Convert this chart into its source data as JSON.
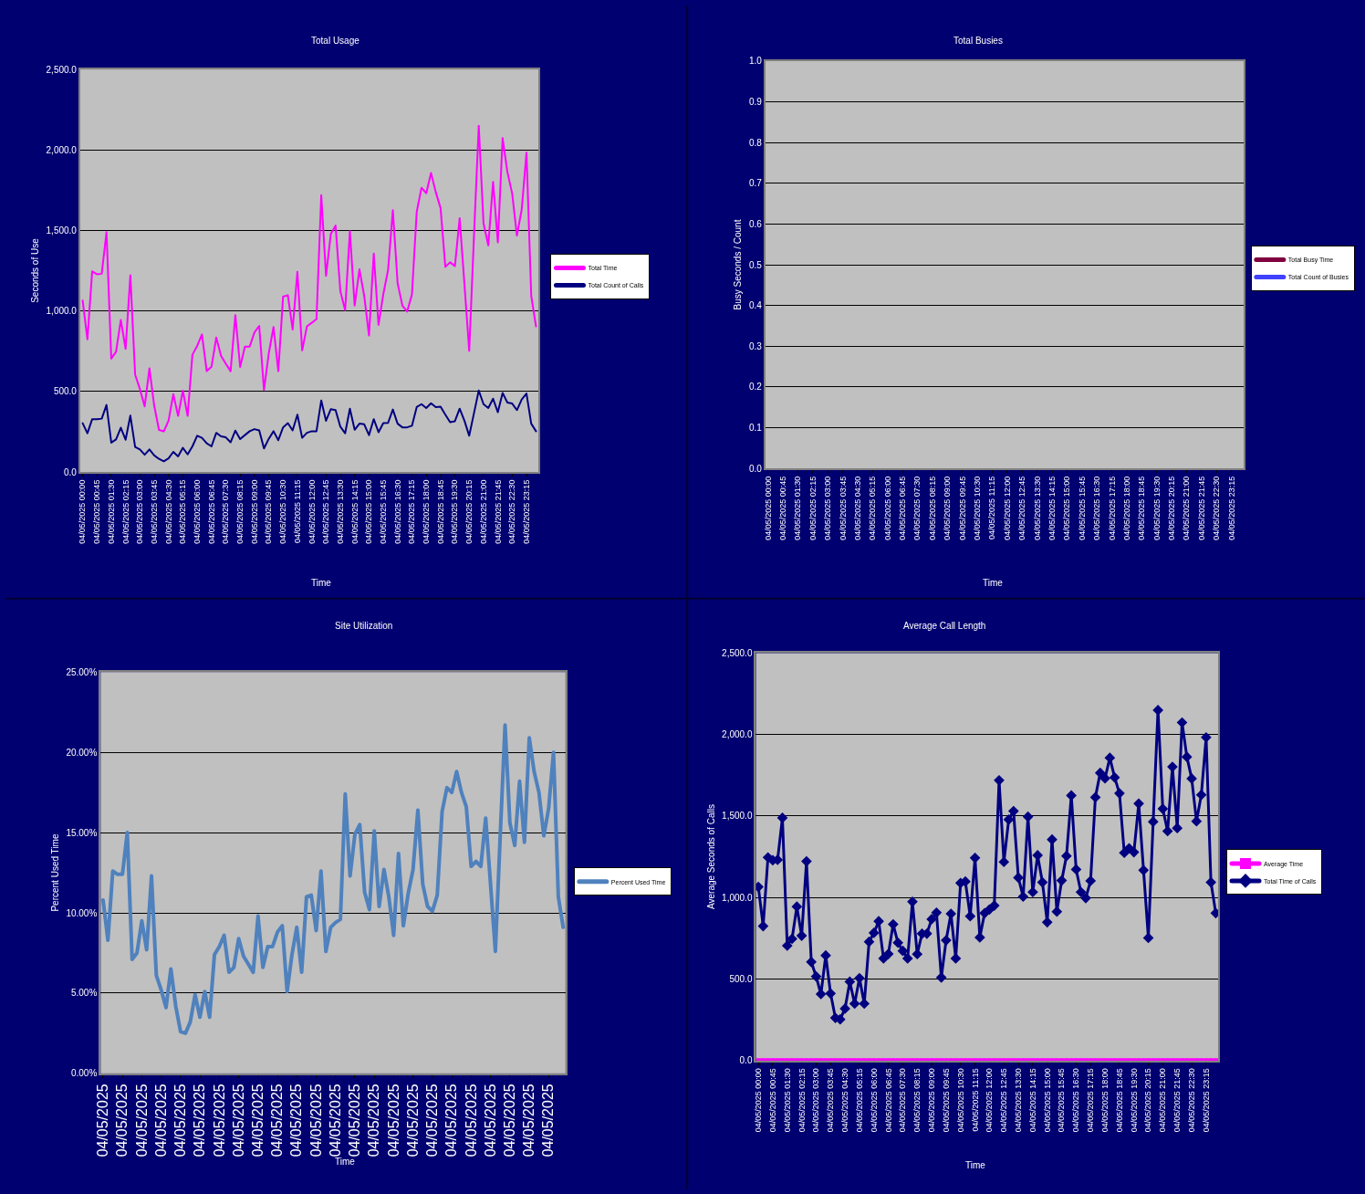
{
  "chart_data": [
    {
      "type": "line",
      "title": "Total Usage",
      "xlabel": "Time",
      "ylabel": "Seconds of Use",
      "grid": "y",
      "legend": "right",
      "categories": [
        "04/05/2025 00:00",
        null,
        null,
        "04/05/2025 00:45",
        null,
        null,
        "04/05/2025 01:30",
        null,
        null,
        "04/05/2025 02:15",
        null,
        null,
        "04/05/2025 03:00",
        null,
        null,
        "04/05/2025 03:45",
        null,
        null,
        "04/05/2025 04:30",
        null,
        null,
        "04/05/2025 05:15",
        null,
        null,
        "04/05/2025 06:00",
        null,
        null,
        "04/05/2025 06:45",
        null,
        null,
        "04/05/2025 07:30",
        null,
        null,
        "04/05/2025 08:15",
        null,
        null,
        "04/05/2025 09:00",
        null,
        null,
        "04/05/2025 09:45",
        null,
        null,
        "04/05/2025 10:30",
        null,
        null,
        "04/05/2025 11:15",
        null,
        null,
        "04/05/2025 12:00",
        null,
        null,
        "04/05/2025 12:45",
        null,
        null,
        "04/05/2025 13:30",
        null,
        null,
        "04/05/2025 14:15",
        null,
        null,
        "04/05/2025 15:00",
        null,
        null,
        "04/05/2025 15:45",
        null,
        null,
        "04/05/2025 16:30",
        null,
        null,
        "04/05/2025 17:15",
        null,
        null,
        "04/05/2025 18:00",
        null,
        null,
        "04/05/2025 18:45",
        null,
        null,
        "04/05/2025 19:30",
        null,
        null,
        "04/05/2025 20:15",
        null,
        null,
        "04/05/2025 21:00",
        null,
        null,
        "04/05/2025 21:45",
        null,
        null,
        "04/05/2025 22:30",
        null,
        null,
        "04/05/2025 23:15",
        null,
        null
      ],
      "ylim": [
        0,
        2500
      ],
      "yticks": [
        {
          "value": 0,
          "label": "0.0"
        },
        {
          "value": 500,
          "label": "500.0"
        },
        {
          "value": 1000,
          "label": "1,000.0"
        },
        {
          "value": 1500,
          "label": "1,500.0"
        },
        {
          "value": 2000,
          "label": "2,000.0"
        },
        {
          "value": 2500,
          "label": "2,500.0"
        }
      ],
      "series": [
        {
          "name": "Total Time",
          "color": "#ff00ff",
          "values": [
            1065,
            824,
            1246,
            1228,
            1231,
            1489,
            704,
            746,
            944,
            765,
            1222,
            604,
            515,
            407,
            644,
            411,
            261,
            252,
            318,
            483,
            348,
            505,
            348,
            728,
            783,
            854,
            626,
            653,
            835,
            722,
            672,
            626,
            974,
            652,
            778,
            778,
            867,
            907,
            509,
            737,
            900,
            626,
            1089,
            1098,
            885,
            1243,
            755,
            904,
            926,
            950,
            1719,
            1218,
            1478,
            1530,
            1122,
            1005,
            1496,
            1033,
            1259,
            1093,
            848,
            1356,
            913,
            1104,
            1255,
            1626,
            1172,
            1033,
            996,
            1102,
            1615,
            1765,
            1731,
            1857,
            1737,
            1639,
            1274,
            1302,
            1278,
            1576,
            1167,
            752,
            1465,
            2150,
            1544,
            1407,
            1802,
            1426,
            2074,
            1863,
            1730,
            1468,
            1630,
            1983,
            1093,
            904
          ]
        },
        {
          "name": "Total Count of Calls",
          "color": "#000080",
          "values": [
            303,
            240,
            328,
            328,
            331,
            416,
            182,
            202,
            275,
            200,
            350,
            155,
            140,
            107,
            140,
            103,
            81,
            66,
            84,
            125,
            97,
            150,
            109,
            159,
            225,
            212,
            178,
            159,
            243,
            221,
            215,
            184,
            257,
            204,
            229,
            253,
            266,
            258,
            146,
            206,
            253,
            197,
            277,
            303,
            258,
            356,
            212,
            243,
            253,
            253,
            444,
            318,
            390,
            384,
            281,
            240,
            393,
            262,
            300,
            296,
            229,
            328,
            247,
            303,
            305,
            388,
            300,
            277,
            277,
            287,
            403,
            421,
            397,
            427,
            403,
            406,
            356,
            309,
            315,
            393,
            318,
            225,
            365,
            506,
            421,
            397,
            455,
            371,
            491,
            431,
            425,
            384,
            450,
            487,
            300,
            253
          ]
        }
      ]
    },
    {
      "type": "line",
      "title": "Total Busies",
      "xlabel": "Time",
      "ylabel": "Busy Seconds / Count",
      "grid": "y",
      "legend": "right",
      "categories": [
        "04/05/2025 00:00",
        null,
        null,
        "04/05/2025 00:45",
        null,
        null,
        "04/05/2025 01:30",
        null,
        null,
        "04/05/2025 02:15",
        null,
        null,
        "04/05/2025 03:00",
        null,
        null,
        "04/05/2025 03:45",
        null,
        null,
        "04/05/2025 04:30",
        null,
        null,
        "04/05/2025 05:15",
        null,
        null,
        "04/05/2025 06:00",
        null,
        null,
        "04/05/2025 06:45",
        null,
        null,
        "04/05/2025 07:30",
        null,
        null,
        "04/05/2025 08:15",
        null,
        null,
        "04/05/2025 09:00",
        null,
        null,
        "04/05/2025 09:45",
        null,
        null,
        "04/05/2025 10:30",
        null,
        null,
        "04/05/2025 11:15",
        null,
        null,
        "04/05/2025 12:00",
        null,
        null,
        "04/05/2025 12:45",
        null,
        null,
        "04/05/2025 13:30",
        null,
        null,
        "04/05/2025 14:15",
        null,
        null,
        "04/05/2025 15:00",
        null,
        null,
        "04/05/2025 15:45",
        null,
        null,
        "04/05/2025 16:30",
        null,
        null,
        "04/05/2025 17:15",
        null,
        null,
        "04/05/2025 18:00",
        null,
        null,
        "04/05/2025 18:45",
        null,
        null,
        "04/05/2025 19:30",
        null,
        null,
        "04/05/2025 20:15",
        null,
        null,
        "04/05/2025 21:00",
        null,
        null,
        "04/05/2025 21:45",
        null,
        null,
        "04/05/2025 22:30",
        null,
        null,
        "04/05/2025 23:15",
        null,
        null
      ],
      "ylim": [
        0,
        1
      ],
      "yticks": [
        {
          "value": 0,
          "label": "0.0"
        },
        {
          "value": 0.1,
          "label": "0.1"
        },
        {
          "value": 0.2,
          "label": "0.2"
        },
        {
          "value": 0.3,
          "label": "0.3"
        },
        {
          "value": 0.4,
          "label": "0.4"
        },
        {
          "value": 0.5,
          "label": "0.5"
        },
        {
          "value": 0.6,
          "label": "0.6"
        },
        {
          "value": 0.7,
          "label": "0.7"
        },
        {
          "value": 0.8,
          "label": "0.8"
        },
        {
          "value": 0.9,
          "label": "0.9"
        },
        {
          "value": 1,
          "label": "1.0"
        }
      ],
      "series": [
        {
          "name": "Total Busy Time",
          "color": "#800040",
          "values": [
            null,
            null,
            null,
            null,
            null,
            null,
            null,
            null,
            null,
            null,
            null,
            null,
            null,
            null,
            null,
            null,
            null,
            null,
            null,
            null,
            null,
            null,
            null,
            null,
            null,
            null,
            null,
            null,
            null,
            null,
            null,
            null,
            null,
            null,
            null,
            null,
            null,
            null,
            null,
            null,
            null,
            null,
            null,
            null,
            null,
            null,
            null,
            null,
            null,
            null,
            null,
            null,
            null,
            null,
            null,
            null,
            null,
            null,
            null,
            null,
            null,
            null,
            null,
            null,
            null,
            null,
            null,
            null,
            null,
            null,
            null,
            null,
            null,
            null,
            null,
            null,
            null,
            null,
            null,
            null,
            null,
            null,
            null,
            null,
            null,
            null,
            null,
            null,
            null,
            null,
            null,
            null,
            null,
            null,
            null,
            null
          ]
        },
        {
          "name": "Total Count of Busies",
          "color": "#4040ff",
          "values": [
            null,
            null,
            null,
            null,
            null,
            null,
            null,
            null,
            null,
            null,
            null,
            null,
            null,
            null,
            null,
            null,
            null,
            null,
            null,
            null,
            null,
            null,
            null,
            null,
            null,
            null,
            null,
            null,
            null,
            null,
            null,
            null,
            null,
            null,
            null,
            null,
            null,
            null,
            null,
            null,
            null,
            null,
            null,
            null,
            null,
            null,
            null,
            null,
            null,
            null,
            null,
            null,
            null,
            null,
            null,
            null,
            null,
            null,
            null,
            null,
            null,
            null,
            null,
            null,
            null,
            null,
            null,
            null,
            null,
            null,
            null,
            null,
            null,
            null,
            null,
            null,
            null,
            null,
            null,
            null,
            null,
            null,
            null,
            null,
            null,
            null,
            null,
            null,
            null,
            null,
            null,
            null,
            null,
            null,
            null,
            null
          ]
        }
      ]
    },
    {
      "type": "line",
      "title": "Site Utilization",
      "xlabel": "Time",
      "ylabel": "Percent Used Time",
      "grid": "y",
      "legend": "right",
      "categories": [
        "04/05/2025",
        null,
        null,
        null,
        "04/05/2025",
        null,
        null,
        null,
        "04/05/2025",
        null,
        null,
        null,
        "04/05/2025",
        null,
        null,
        null,
        "04/05/2025",
        null,
        null,
        null,
        "04/05/2025",
        null,
        null,
        null,
        "04/05/2025",
        null,
        null,
        null,
        "04/05/2025",
        null,
        null,
        null,
        "04/05/2025",
        null,
        null,
        null,
        "04/05/2025",
        null,
        null,
        null,
        "04/05/2025",
        null,
        null,
        null,
        "04/05/2025",
        null,
        null,
        null,
        "04/05/2025",
        null,
        null,
        null,
        "04/05/2025",
        null,
        null,
        null,
        "04/05/2025",
        null,
        null,
        null,
        "04/05/2025",
        null,
        null,
        null,
        "04/05/2025",
        null,
        null,
        null,
        "04/05/2025",
        null,
        null,
        null,
        "04/05/2025",
        null,
        null,
        null,
        "04/05/2025",
        null,
        null,
        null,
        "04/05/2025",
        null,
        null,
        null,
        "04/05/2025",
        null,
        null,
        null,
        "04/05/2025",
        null,
        null,
        null,
        "04/05/2025",
        null,
        null,
        null
      ],
      "ylim": [
        0,
        25
      ],
      "yticks": [
        {
          "value": 0,
          "label": "0.00%"
        },
        {
          "value": 5,
          "label": "5.00%"
        },
        {
          "value": 10,
          "label": "10.00%"
        },
        {
          "value": 15,
          "label": "15.00%"
        },
        {
          "value": 20,
          "label": "20.00%"
        },
        {
          "value": 25,
          "label": "25.00%"
        }
      ],
      "series": [
        {
          "name": "Percent Used Time",
          "color": "#4f81bd",
          "values": [
            10.8,
            8.3,
            12.6,
            12.4,
            12.4,
            15.0,
            7.1,
            7.5,
            9.5,
            7.7,
            12.3,
            6.1,
            5.2,
            4.1,
            6.5,
            4.2,
            2.6,
            2.5,
            3.2,
            4.9,
            3.5,
            5.1,
            3.5,
            7.4,
            7.9,
            8.6,
            6.3,
            6.6,
            8.4,
            7.3,
            6.8,
            6.3,
            9.8,
            6.6,
            7.9,
            7.9,
            8.8,
            9.2,
            5.1,
            7.4,
            9.1,
            6.3,
            11.0,
            11.1,
            8.9,
            12.6,
            7.6,
            9.1,
            9.4,
            9.6,
            17.4,
            12.3,
            14.9,
            15.5,
            11.3,
            10.2,
            15.1,
            10.4,
            12.7,
            11.0,
            8.6,
            13.7,
            9.2,
            11.2,
            12.7,
            16.4,
            11.8,
            10.4,
            10.1,
            11.1,
            16.3,
            17.8,
            17.5,
            18.8,
            17.5,
            16.6,
            12.9,
            13.2,
            12.9,
            15.9,
            11.8,
            7.6,
            14.8,
            21.7,
            15.6,
            14.2,
            18.2,
            14.4,
            20.9,
            18.8,
            17.5,
            14.8,
            16.5,
            20.0,
            11.0,
            9.1
          ]
        }
      ]
    },
    {
      "type": "line",
      "title": "Average Call Length",
      "xlabel": "Time",
      "ylabel": "Average Seconds of Calls",
      "grid": "y",
      "legend": "right",
      "categories": [
        "04/05/2025 00:00",
        null,
        null,
        "04/05/2025 00:45",
        null,
        null,
        "04/05/2025 01:30",
        null,
        null,
        "04/05/2025 02:15",
        null,
        null,
        "04/05/2025 03:00",
        null,
        null,
        "04/05/2025 03:45",
        null,
        null,
        "04/05/2025 04:30",
        null,
        null,
        "04/05/2025 05:15",
        null,
        null,
        "04/05/2025 06:00",
        null,
        null,
        "04/05/2025 06:45",
        null,
        null,
        "04/05/2025 07:30",
        null,
        null,
        "04/05/2025 08:15",
        null,
        null,
        "04/05/2025 09:00",
        null,
        null,
        "04/05/2025 09:45",
        null,
        null,
        "04/05/2025 10:30",
        null,
        null,
        "04/05/2025 11:15",
        null,
        null,
        "04/05/2025 12:00",
        null,
        null,
        "04/05/2025 12:45",
        null,
        null,
        "04/05/2025 13:30",
        null,
        null,
        "04/05/2025 14:15",
        null,
        null,
        "04/05/2025 15:00",
        null,
        null,
        "04/05/2025 15:45",
        null,
        null,
        "04/05/2025 16:30",
        null,
        null,
        "04/05/2025 17:15",
        null,
        null,
        "04/05/2025 18:00",
        null,
        null,
        "04/05/2025 18:45",
        null,
        null,
        "04/05/2025 19:30",
        null,
        null,
        "04/05/2025 20:15",
        null,
        null,
        "04/05/2025 21:00",
        null,
        null,
        "04/05/2025 21:45",
        null,
        null,
        "04/05/2025 22:30",
        null,
        null,
        "04/05/2025 23:15",
        null,
        null
      ],
      "ylim": [
        0,
        2500
      ],
      "yticks": [
        {
          "value": 0,
          "label": "0.0"
        },
        {
          "value": 500,
          "label": "500.0"
        },
        {
          "value": 1000,
          "label": "1,000.0"
        },
        {
          "value": 1500,
          "label": "1,500.0"
        },
        {
          "value": 2000,
          "label": "2,000.0"
        },
        {
          "value": 2500,
          "label": "2,500.0"
        }
      ],
      "series": [
        {
          "name": "Average Time",
          "color": "#ff00ff",
          "marker": "square",
          "values": [
            0,
            0,
            0,
            0,
            0,
            0,
            0,
            0,
            0,
            0,
            0,
            0,
            0,
            0,
            0,
            0,
            0,
            0,
            0,
            0,
            0,
            0,
            0,
            0,
            0,
            0,
            0,
            0,
            0,
            0,
            0,
            0,
            0,
            0,
            0,
            0,
            0,
            0,
            0,
            0,
            0,
            0,
            0,
            0,
            0,
            0,
            0,
            0,
            0,
            0,
            0,
            0,
            0,
            0,
            0,
            0,
            0,
            0,
            0,
            0,
            0,
            0,
            0,
            0,
            0,
            0,
            0,
            0,
            0,
            0,
            0,
            0,
            0,
            0,
            0,
            0,
            0,
            0,
            0,
            0,
            0,
            0,
            0,
            0,
            0,
            0,
            0,
            0,
            0,
            0,
            0,
            0,
            0,
            0,
            0,
            0
          ]
        },
        {
          "name": "Total Time of Calls",
          "color": "#000080",
          "marker": "diamond",
          "values": [
            1065,
            824,
            1246,
            1228,
            1231,
            1489,
            704,
            746,
            944,
            765,
            1222,
            604,
            515,
            407,
            644,
            411,
            261,
            252,
            318,
            483,
            348,
            505,
            348,
            728,
            783,
            854,
            626,
            653,
            835,
            722,
            672,
            626,
            974,
            652,
            778,
            778,
            867,
            907,
            509,
            737,
            900,
            626,
            1089,
            1098,
            885,
            1243,
            755,
            904,
            926,
            950,
            1719,
            1218,
            1478,
            1530,
            1122,
            1005,
            1496,
            1033,
            1259,
            1093,
            848,
            1356,
            913,
            1104,
            1255,
            1626,
            1172,
            1033,
            996,
            1102,
            1615,
            1765,
            1731,
            1857,
            1737,
            1639,
            1274,
            1302,
            1278,
            1576,
            1167,
            752,
            1465,
            2150,
            1544,
            1407,
            1802,
            1426,
            2074,
            1863,
            1730,
            1468,
            1630,
            1983,
            1093,
            904
          ]
        }
      ]
    }
  ]
}
